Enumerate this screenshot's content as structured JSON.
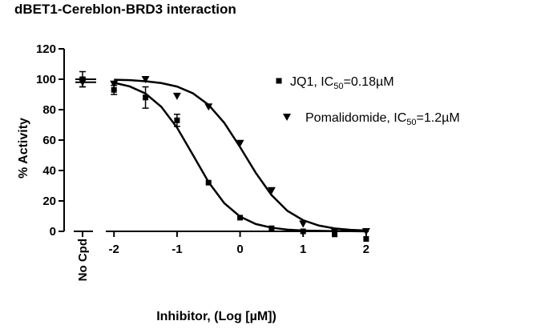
{
  "chart_data": {
    "type": "scatter",
    "title": "dBET1-Cereblon-BRD3 interaction",
    "x_label": "Inhibitor, (Log [µM])",
    "y_label": "% Activity",
    "xlim": [
      -2.13,
      2.04
    ],
    "xticks": [
      -2,
      -1,
      0,
      1,
      2
    ],
    "ylim": [
      0,
      120
    ],
    "yticks": [
      0,
      20,
      40,
      60,
      80,
      100,
      120
    ],
    "control_label": "No Cpd",
    "x": [
      -2,
      -1.5,
      -1,
      -0.5,
      0,
      0.5,
      1,
      1.5,
      2
    ],
    "fit_x": [
      -2,
      -1.75,
      -1.5,
      -1.25,
      -1,
      -0.75,
      -0.5,
      -0.25,
      0,
      0.25,
      0.5,
      0.75,
      1,
      1.25,
      1.5,
      1.75,
      2
    ],
    "series": [
      {
        "name": "JQ1, IC",
        "name_sub": "50",
        "name_rest": "=0.18µM",
        "color": "#000000",
        "marker": "square",
        "control": 100,
        "control_error": 5,
        "values": [
          93,
          88,
          73,
          32,
          9,
          2,
          0,
          -2,
          -5
        ],
        "errors": [
          3,
          7,
          4,
          null,
          null,
          null,
          null,
          null,
          null
        ],
        "fit": [
          97.7,
          95.3,
          90.6,
          81.9,
          68.2,
          50.4,
          32.4,
          18.5,
          9.7,
          4.8,
          2.4,
          1.1,
          0.5,
          0.3,
          0.1,
          0.1,
          0.0
        ]
      },
      {
        "name": "Pomalidomide, IC",
        "name_sub": "50",
        "name_rest": "=1.2µM",
        "color": "#000000",
        "marker": "triangle-down",
        "control": 98,
        "control_error": 3,
        "values": [
          97,
          100,
          89,
          82,
          58,
          27,
          5,
          0,
          0
        ],
        "errors": [
          null,
          null,
          null,
          null,
          null,
          null,
          null,
          null,
          null
        ],
        "fit": [
          99.7,
          99.4,
          98.7,
          97.5,
          95.2,
          90.8,
          83.2,
          71.3,
          55.4,
          38.4,
          23.8,
          13.5,
          7.3,
          3.8,
          1.9,
          1.0,
          0.5
        ]
      }
    ]
  }
}
